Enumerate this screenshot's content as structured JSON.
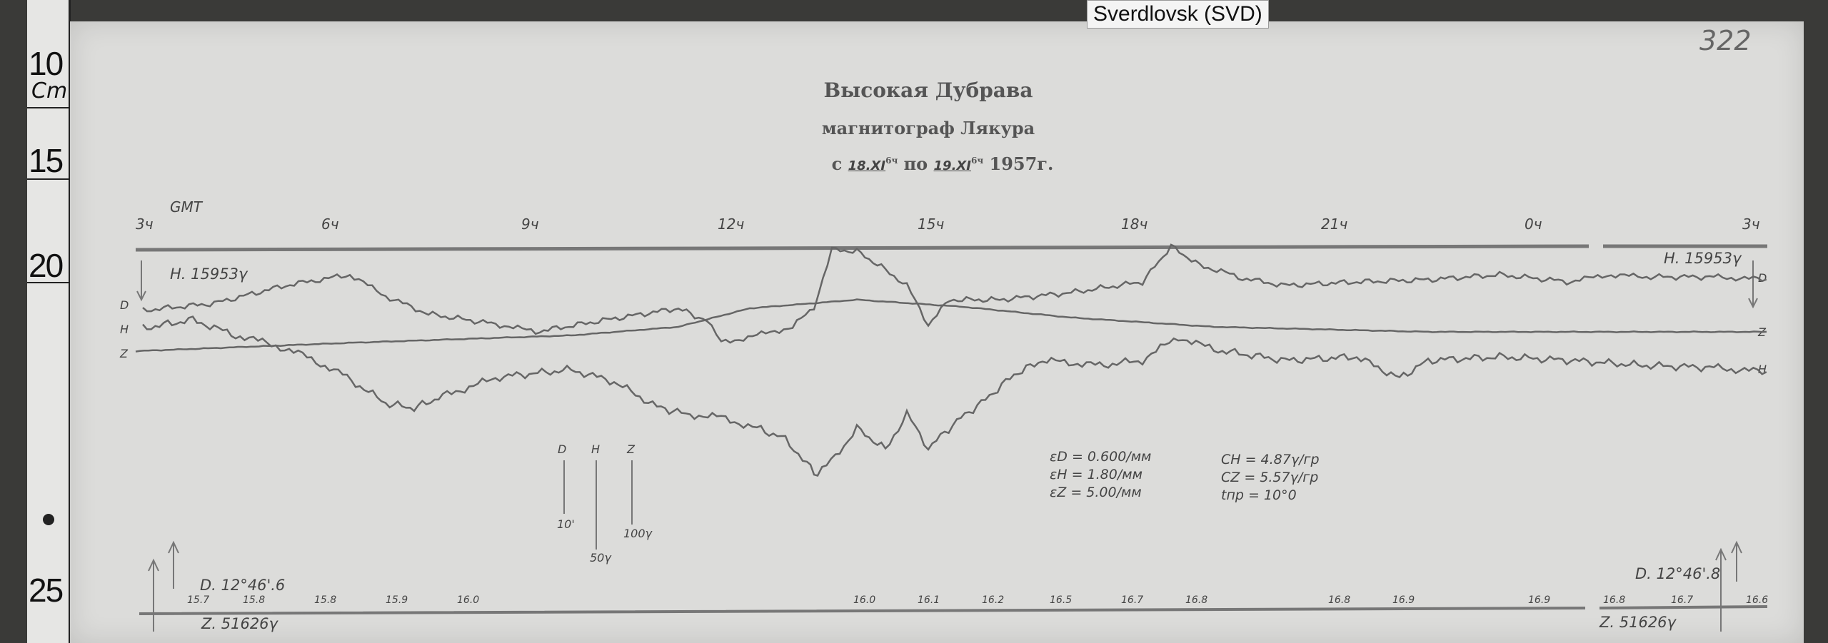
{
  "station_label": "Sverdlovsk (SVD)",
  "sheet_number": "322",
  "ruler": {
    "marks": [
      "10",
      "15",
      "20",
      "25"
    ],
    "unit": "Cm"
  },
  "header": {
    "station": "Высокая Дубрава",
    "instrument": "магнитограф Лякура",
    "date_line": {
      "prefix": "с",
      "from": "18.XI",
      "from_hour": "6ч",
      "mid": "по",
      "to": "19.XI",
      "to_hour": "6ч",
      "year": "1957г."
    }
  },
  "time_axis": {
    "label": "GMT",
    "hours": [
      "3ч",
      "6ч",
      "9ч",
      "12ч",
      "15ч",
      "18ч",
      "21ч",
      "0ч",
      "3ч"
    ]
  },
  "trace_labels": {
    "d": "D",
    "h": "H",
    "z": "Z"
  },
  "baselines": {
    "h_left": "H. 15953γ",
    "h_right": "H. 15953γ",
    "d_left": "D. 12°46'.6",
    "d_right": "D. 12°46'.8",
    "z_left": "Z. 51626γ",
    "z_right": "Z. 51626γ"
  },
  "scale_bars": [
    {
      "component": "D",
      "value": "10'"
    },
    {
      "component": "H",
      "value": "50γ"
    },
    {
      "component": "Z",
      "value": "100γ"
    }
  ],
  "sensitivities": [
    "εD = 0.600/мм",
    "εH = 1.80/мм",
    "εZ = 5.00/мм"
  ],
  "constants": [
    "CH = 4.87γ/гр",
    "CZ = 5.57γ/гр",
    "tпр = 10°0"
  ],
  "temperatures": [
    "15.7",
    "15.8",
    "15.8",
    "15.9",
    "16.0",
    "16.0",
    "16.1",
    "16.2",
    "16.5",
    "16.7",
    "16.8",
    "16.8",
    "16.9",
    "16.9",
    "16.8",
    "16.7",
    "16.6"
  ]
}
